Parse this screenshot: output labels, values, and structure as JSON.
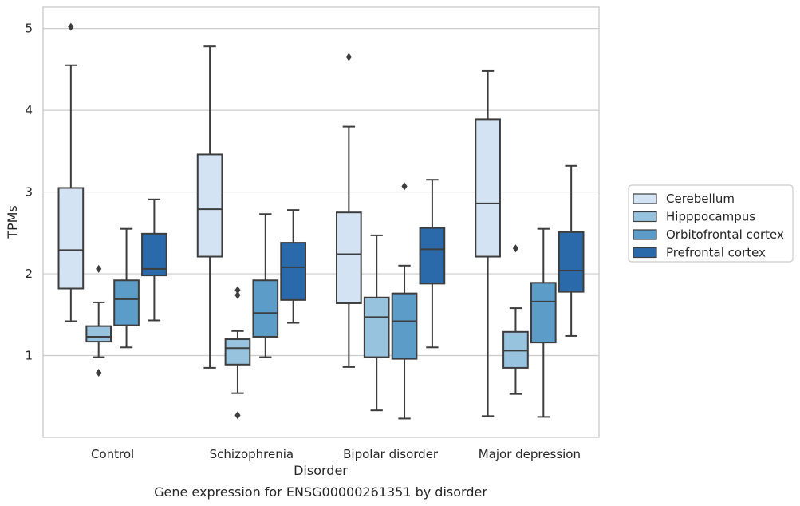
{
  "caption": "Gene expression for ENSG00000261351 by disorder",
  "chart_data": {
    "type": "box",
    "xlabel": "Disorder",
    "ylabel": "TPMs",
    "ylim": [
      0.0,
      5.26
    ],
    "yticks": [
      1,
      2,
      3,
      4,
      5
    ],
    "grid": "horizontal",
    "legend_placement": "right",
    "categories": [
      "Control",
      "Schizophrenia",
      "Bipolar disorder",
      "Major depression"
    ],
    "series": [
      {
        "name": "Cerebellum",
        "color": "#d4e3f3",
        "boxes": [
          {
            "whislo": 1.42,
            "q1": 1.82,
            "med": 2.29,
            "q3": 3.05,
            "whishi": 4.55,
            "fliers": [
              5.02
            ]
          },
          {
            "whislo": 0.85,
            "q1": 2.21,
            "med": 2.79,
            "q3": 3.46,
            "whishi": 4.78,
            "fliers": []
          },
          {
            "whislo": 0.86,
            "q1": 1.64,
            "med": 2.24,
            "q3": 2.75,
            "whishi": 3.8,
            "fliers": [
              4.65
            ]
          },
          {
            "whislo": 0.26,
            "q1": 2.21,
            "med": 2.86,
            "q3": 3.89,
            "whishi": 4.48,
            "fliers": []
          }
        ]
      },
      {
        "name": "Hipppocampus",
        "color": "#98c3df",
        "boxes": [
          {
            "whislo": 0.98,
            "q1": 1.17,
            "med": 1.23,
            "q3": 1.36,
            "whishi": 1.65,
            "fliers": [
              2.06,
              0.79
            ]
          },
          {
            "whislo": 0.54,
            "q1": 0.89,
            "med": 1.09,
            "q3": 1.2,
            "whishi": 1.3,
            "fliers": [
              1.8,
              1.74,
              0.27
            ]
          },
          {
            "whislo": 0.33,
            "q1": 0.98,
            "med": 1.47,
            "q3": 1.71,
            "whishi": 2.47,
            "fliers": []
          },
          {
            "whislo": 0.53,
            "q1": 0.85,
            "med": 1.06,
            "q3": 1.29,
            "whishi": 1.58,
            "fliers": [
              2.31
            ]
          }
        ]
      },
      {
        "name": "Orbitofrontal cortex",
        "color": "#5b9cc9",
        "boxes": [
          {
            "whislo": 1.1,
            "q1": 1.37,
            "med": 1.69,
            "q3": 1.92,
            "whishi": 2.55,
            "fliers": []
          },
          {
            "whislo": 0.98,
            "q1": 1.23,
            "med": 1.52,
            "q3": 1.92,
            "whishi": 2.73,
            "fliers": []
          },
          {
            "whislo": 0.23,
            "q1": 0.96,
            "med": 1.42,
            "q3": 1.76,
            "whishi": 2.1,
            "fliers": [
              3.07
            ]
          },
          {
            "whislo": 0.25,
            "q1": 1.16,
            "med": 1.66,
            "q3": 1.89,
            "whishi": 2.55,
            "fliers": []
          }
        ]
      },
      {
        "name": "Prefrontal cortex",
        "color": "#2a6aab",
        "boxes": [
          {
            "whislo": 1.43,
            "q1": 1.98,
            "med": 2.06,
            "q3": 2.49,
            "whishi": 2.91,
            "fliers": []
          },
          {
            "whislo": 1.4,
            "q1": 1.68,
            "med": 2.08,
            "q3": 2.38,
            "whishi": 2.78,
            "fliers": []
          },
          {
            "whislo": 1.1,
            "q1": 1.88,
            "med": 2.3,
            "q3": 2.56,
            "whishi": 3.15,
            "fliers": []
          },
          {
            "whislo": 1.24,
            "q1": 1.78,
            "med": 2.04,
            "q3": 2.51,
            "whishi": 3.32,
            "fliers": []
          }
        ]
      }
    ]
  }
}
